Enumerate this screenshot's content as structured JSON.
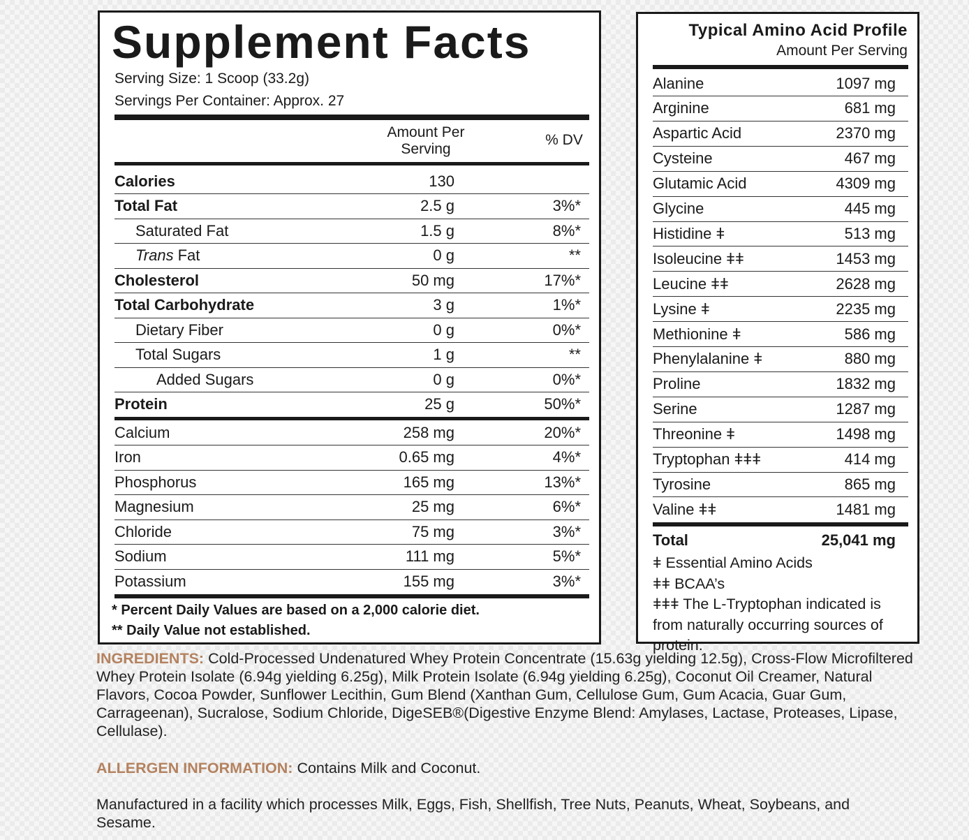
{
  "supplement_facts": {
    "title": "Supplement Facts",
    "serving_size": "Serving Size: 1 Scoop (33.2g)",
    "servings_per_container": "Servings Per Container: Approx. 27",
    "columns": {
      "amount": "Amount Per Serving",
      "dv": "% DV"
    },
    "nutrients": [
      {
        "name": "Calories",
        "amount": "130"
      },
      {
        "name": "Total Fat",
        "amount": "2.5 g",
        "dv": "3%*"
      },
      {
        "name": "Saturated Fat",
        "amount": "1.5 g",
        "dv": "8%*"
      },
      {
        "name_italic": "Trans",
        "name": "Fat",
        "amount": "0 g",
        "dv": "**"
      },
      {
        "name": "Cholesterol",
        "amount": "50 mg",
        "dv": "17%*"
      },
      {
        "name": "Total Carbohydrate",
        "amount": "3 g",
        "dv": "1%*"
      },
      {
        "name": "Dietary Fiber",
        "amount": "0 g",
        "dv": "0%*"
      },
      {
        "name": "Total Sugars",
        "amount": "1 g",
        "dv": "**"
      },
      {
        "name": "Added Sugars",
        "amount": "0 g",
        "dv": "0%*"
      },
      {
        "name": "Protein",
        "amount": "25 g",
        "dv": "50%*"
      }
    ],
    "minerals": [
      {
        "name": "Calcium",
        "amount": "258 mg",
        "dv": "20%*"
      },
      {
        "name": "Iron",
        "amount": "0.65 mg",
        "dv": "4%*"
      },
      {
        "name": "Phosphorus",
        "amount": "165 mg",
        "dv": "13%*"
      },
      {
        "name": "Magnesium",
        "amount": "25 mg",
        "dv": "6%*"
      },
      {
        "name": "Chloride",
        "amount": "75 mg",
        "dv": "3%*"
      },
      {
        "name": "Sodium",
        "amount": "111 mg",
        "dv": "5%*"
      },
      {
        "name": "Potassium",
        "amount": "155 mg",
        "dv": "3%*"
      }
    ],
    "footnotes": [
      "* Percent Daily Values are based on a 2,000 calorie diet.",
      "** Daily Value not established."
    ]
  },
  "amino_acid_profile": {
    "title": "Typical Amino Acid Profile",
    "subtitle": "Amount Per Serving",
    "rows": [
      {
        "name": "Alanine",
        "amount": "1097 mg"
      },
      {
        "name": "Arginine",
        "amount": "681 mg"
      },
      {
        "name": "Aspartic Acid",
        "amount": "2370 mg"
      },
      {
        "name": "Cysteine",
        "amount": "467 mg"
      },
      {
        "name": "Glutamic Acid",
        "amount": "4309 mg"
      },
      {
        "name": "Glycine",
        "amount": "445 mg"
      },
      {
        "name": "Histidine ǂ",
        "amount": "513 mg"
      },
      {
        "name": "Isoleucine ǂǂ",
        "amount": "1453 mg"
      },
      {
        "name": "Leucine ǂǂ",
        "amount": "2628 mg"
      },
      {
        "name": "Lysine ǂ",
        "amount": "2235 mg"
      },
      {
        "name": "Methionine ǂ",
        "amount": "586 mg"
      },
      {
        "name": "Phenylalanine ǂ",
        "amount": "880 mg"
      },
      {
        "name": "Proline",
        "amount": "1832 mg"
      },
      {
        "name": "Serine",
        "amount": "1287 mg"
      },
      {
        "name": "Threonine ǂ",
        "amount": "1498 mg"
      },
      {
        "name": "Tryptophan ǂǂǂ",
        "amount": "414 mg"
      },
      {
        "name": "Tyrosine",
        "amount": "865 mg"
      },
      {
        "name": "Valine ǂǂ",
        "amount": "1481 mg"
      }
    ],
    "total": {
      "name": "Total",
      "amount": "25,041 mg"
    },
    "footnotes": [
      "ǂ Essential Amino Acids",
      "ǂǂ BCAA’s",
      "ǂǂǂ The L-Tryptophan indicated is from naturally occurring sources of protein."
    ]
  },
  "ingredients": {
    "label": "INGREDIENTS:",
    "text": "Cold-Processed Undenatured Whey Protein Concentrate (15.63g yielding 12.5g), Cross-Flow Microfiltered Whey Protein Isolate (6.94g yielding 6.25g), Milk Protein Isolate (6.94g yielding 6.25g), Coconut Oil Creamer, Natural Flavors, Cocoa Powder, Sunflower Lecithin, Gum Blend (Xanthan Gum, Cellulose Gum, Gum Acacia, Guar Gum, Carrageenan), Sucralose, Sodium Chloride, DigeSEB®(Digestive Enzyme Blend: Amylases, Lactase, Proteases, Lipase, Cellulase)."
  },
  "allergen": {
    "label": "ALLERGEN INFORMATION:",
    "text": "Contains Milk and Coconut."
  },
  "facility_note": "Manufactured in a facility which processes Milk, Eggs, Fish, Shellfish, Tree Nuts, Peanuts, Wheat, Soybeans, and Sesame."
}
